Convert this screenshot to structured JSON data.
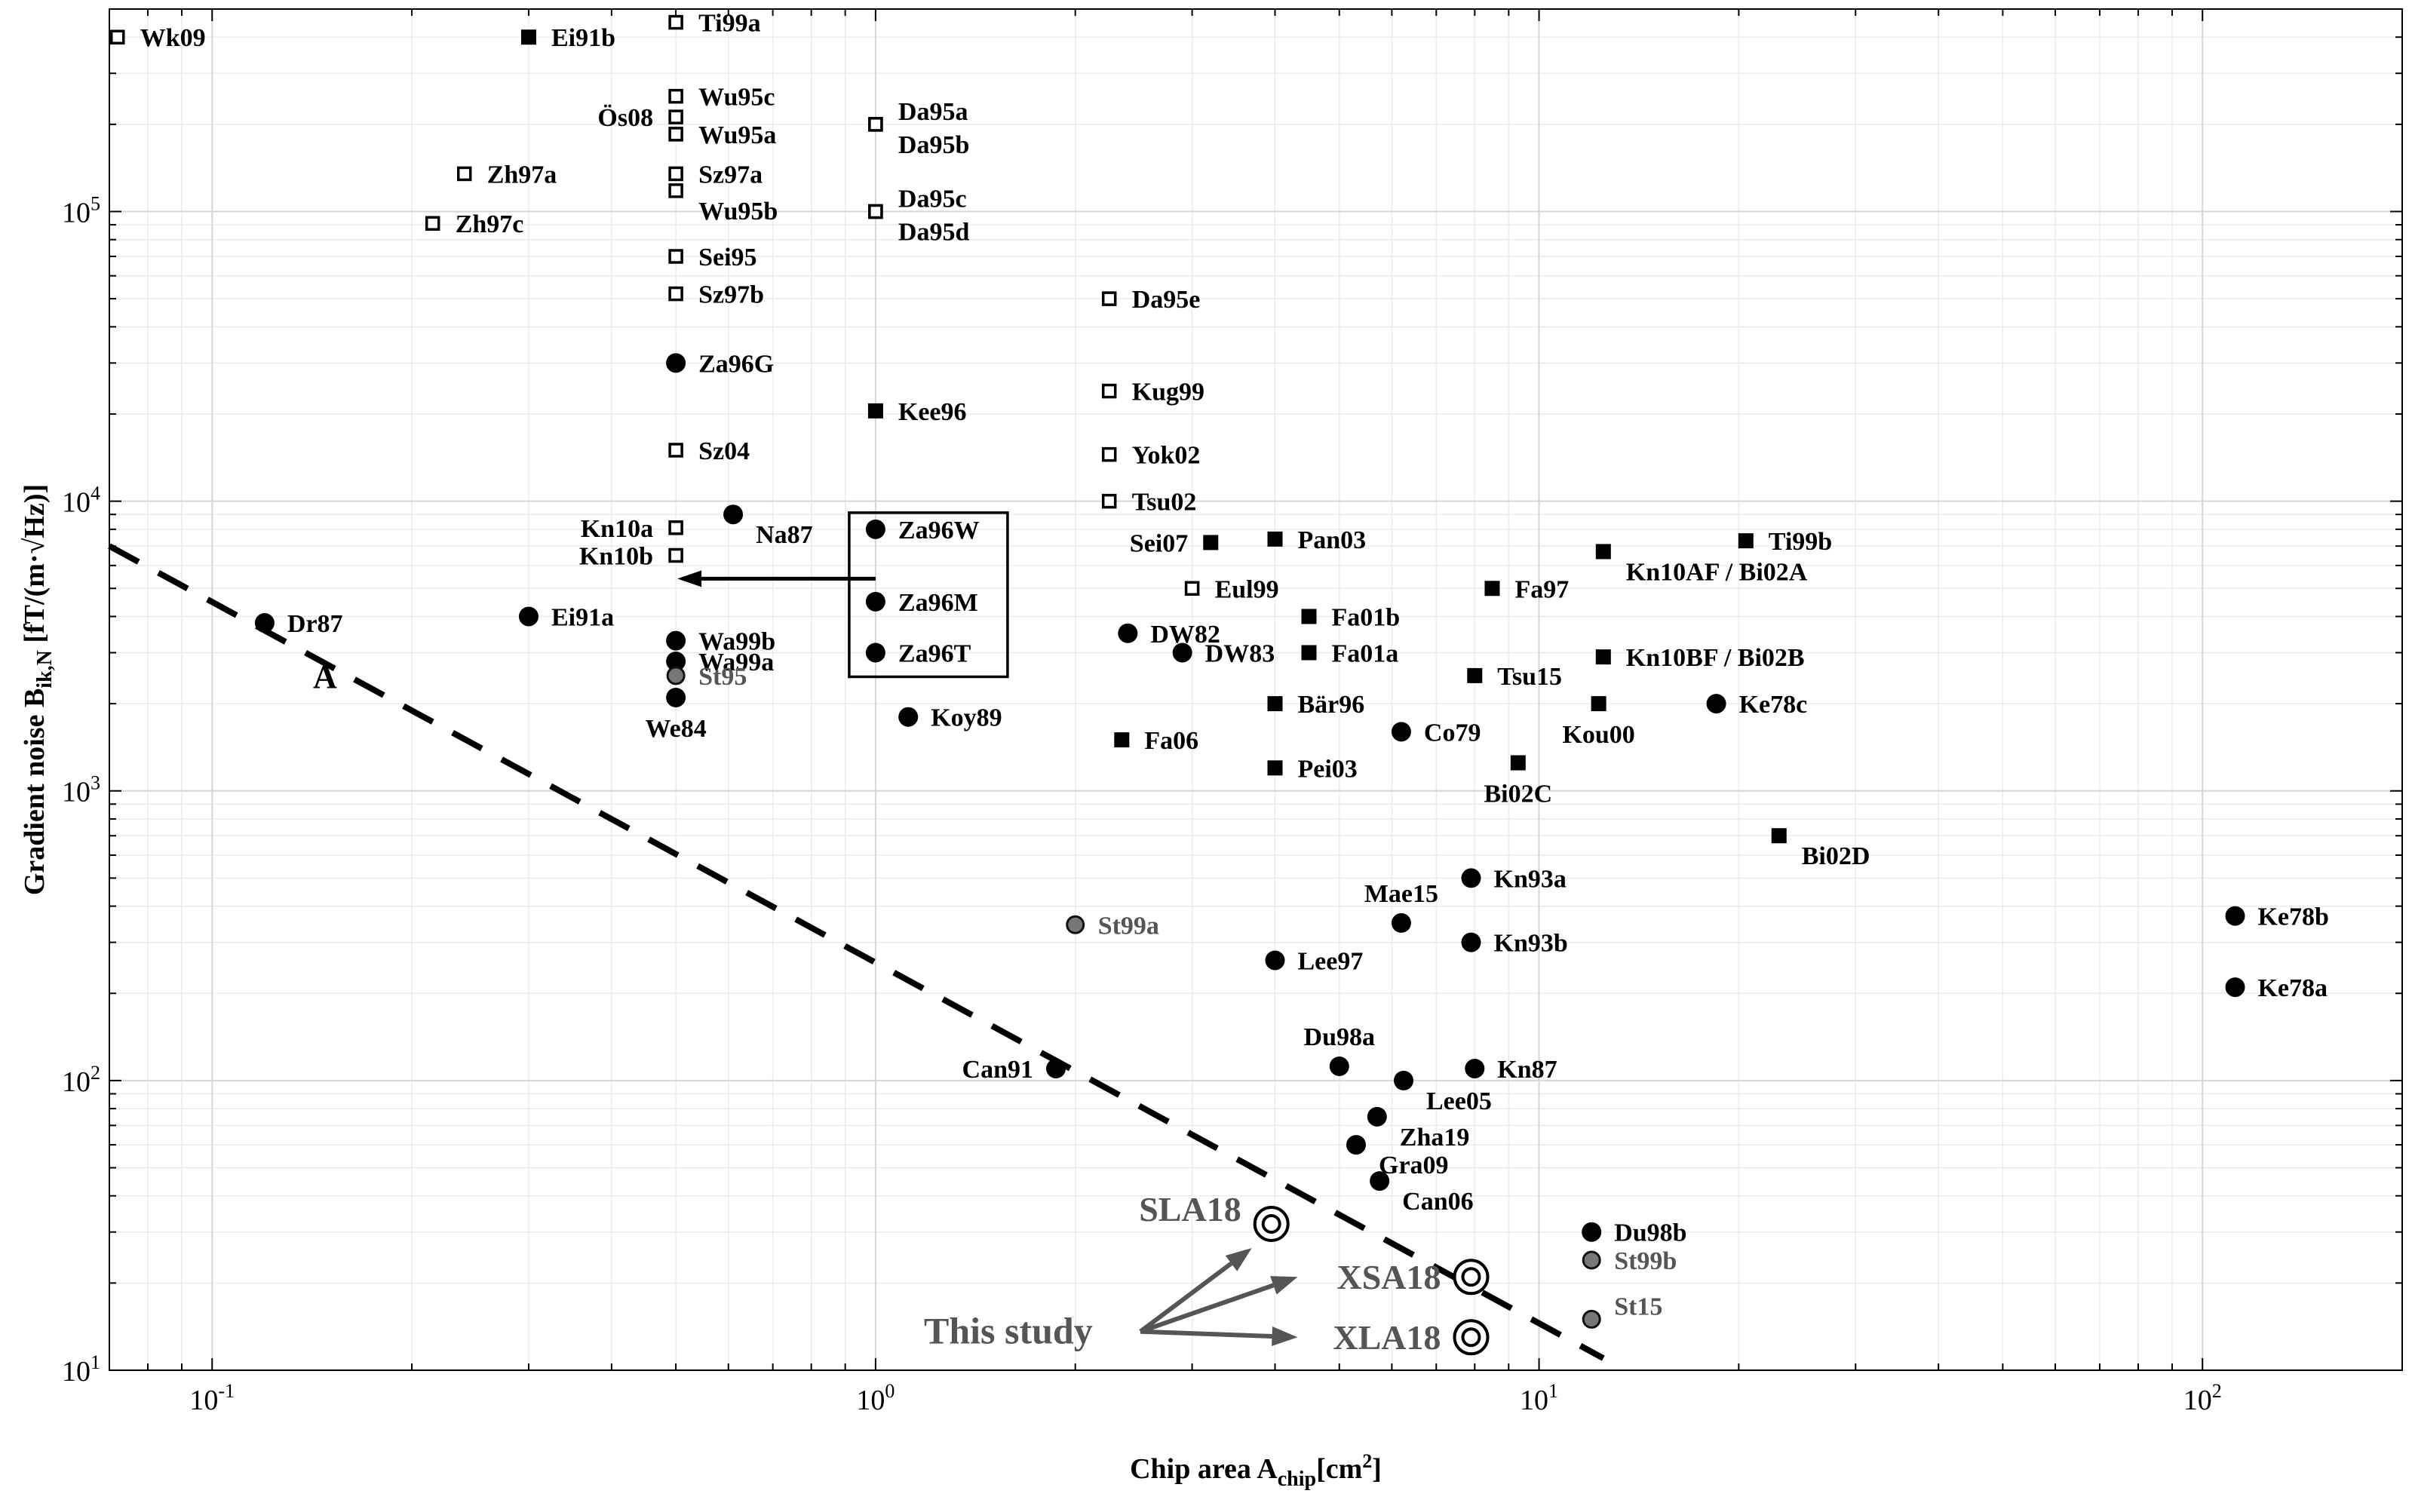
{
  "chart_data": {
    "type": "scatter",
    "title": "",
    "xlabel": {
      "main": "Chip area A",
      "sub": "chip",
      "unit_pre": "[cm",
      "unit_sup": "2",
      "unit_post": "]"
    },
    "ylabel": {
      "main": "Gradient noise B",
      "sub": "ik,N",
      "unit": " [fT/(m·√Hz)]"
    },
    "xscale": "log",
    "yscale": "log",
    "xlim": [
      0.07,
      200
    ],
    "ylim": [
      10,
      500000
    ],
    "x_ticks": [
      {
        "base": "10",
        "exp": "-1"
      },
      {
        "base": "10",
        "exp": "0"
      },
      {
        "base": "10",
        "exp": "1"
      },
      {
        "base": "10",
        "exp": "2"
      }
    ],
    "y_ticks": [
      {
        "base": "10",
        "exp": "1"
      },
      {
        "base": "10",
        "exp": "2"
      },
      {
        "base": "10",
        "exp": "3"
      },
      {
        "base": "10",
        "exp": "4"
      },
      {
        "base": "10",
        "exp": "5"
      }
    ],
    "grid": true,
    "colors": {
      "marker": "#000000",
      "gray_marker": "#777777",
      "gray_text": "#555555",
      "highlight": "#555555"
    },
    "marker_types": {
      "open_square": "open square",
      "filled_square": "filled square",
      "filled_circle": "filled circle",
      "gray_circle": "gray circle",
      "target": "concentric circles"
    },
    "points": [
      {
        "label": "Wk09",
        "x": 0.072,
        "y": 400000,
        "marker": "open_square",
        "label_pos": "right"
      },
      {
        "label": "Ei91b",
        "x": 0.3,
        "y": 400000,
        "marker": "filled_square",
        "label_pos": "right"
      },
      {
        "label": "Ti99a",
        "x": 0.5,
        "y": 450000,
        "marker": "open_square",
        "label_pos": "right"
      },
      {
        "label": "Wu95c",
        "x": 0.5,
        "y": 250000,
        "marker": "open_square",
        "label_pos": "right"
      },
      {
        "label": "Wu95a",
        "x": 0.5,
        "y": 185000,
        "marker": "open_square",
        "label_pos": "right"
      },
      {
        "label": "Ös08",
        "x": 0.5,
        "y": 212000,
        "marker": "open_square",
        "label_pos": "left"
      },
      {
        "label": "Da95a",
        "x": 1.0,
        "y": 200000,
        "marker": "open_square",
        "label_pos": "right-up"
      },
      {
        "label": "Da95b",
        "x": 1.0,
        "y": 200000,
        "marker": "open_square",
        "label_pos": "right-down"
      },
      {
        "label": "Zh97a",
        "x": 0.24,
        "y": 135000,
        "marker": "open_square",
        "label_pos": "right"
      },
      {
        "label": "Sz97a",
        "x": 0.5,
        "y": 135000,
        "marker": "open_square",
        "label_pos": "right"
      },
      {
        "label": "Wu95b",
        "x": 0.5,
        "y": 118000,
        "marker": "open_square",
        "label_pos": "right-down"
      },
      {
        "label": "Da95c",
        "x": 1.0,
        "y": 100000,
        "marker": "open_square",
        "label_pos": "right-up"
      },
      {
        "label": "Da95d",
        "x": 1.0,
        "y": 100000,
        "marker": "open_square",
        "label_pos": "right-down"
      },
      {
        "label": "Zh97c",
        "x": 0.215,
        "y": 91000,
        "marker": "open_square",
        "label_pos": "right"
      },
      {
        "label": "Sei95",
        "x": 0.5,
        "y": 70000,
        "marker": "open_square",
        "label_pos": "right"
      },
      {
        "label": "Sz97b",
        "x": 0.5,
        "y": 52000,
        "marker": "open_square",
        "label_pos": "right"
      },
      {
        "label": "Da95e",
        "x": 2.25,
        "y": 50000,
        "marker": "open_square",
        "label_pos": "right"
      },
      {
        "label": "Za96G",
        "x": 0.5,
        "y": 30000,
        "marker": "filled_circle",
        "label_pos": "right"
      },
      {
        "label": "Kug99",
        "x": 2.25,
        "y": 24000,
        "marker": "open_square",
        "label_pos": "right"
      },
      {
        "label": "Kee96",
        "x": 1.0,
        "y": 20500,
        "marker": "filled_square",
        "label_pos": "right"
      },
      {
        "label": "Sz04",
        "x": 0.5,
        "y": 15000,
        "marker": "open_square",
        "label_pos": "right"
      },
      {
        "label": "Yok02",
        "x": 2.25,
        "y": 14500,
        "marker": "open_square",
        "label_pos": "right"
      },
      {
        "label": "Tsu02",
        "x": 2.25,
        "y": 10000,
        "marker": "open_square",
        "label_pos": "right"
      },
      {
        "label": "Na87",
        "x": 0.61,
        "y": 9000,
        "marker": "filled_circle",
        "label_pos": "right-down"
      },
      {
        "label": "Kn10a",
        "x": 0.5,
        "y": 8100,
        "marker": "open_square",
        "label_pos": "left"
      },
      {
        "label": "Kn10b",
        "x": 0.5,
        "y": 6500,
        "marker": "open_square",
        "label_pos": "left"
      },
      {
        "label": "Za96W",
        "x": 1.0,
        "y": 8000,
        "marker": "filled_circle",
        "label_pos": "right"
      },
      {
        "label": "Za96M",
        "x": 1.0,
        "y": 4500,
        "marker": "filled_circle",
        "label_pos": "right"
      },
      {
        "label": "Za96T",
        "x": 1.0,
        "y": 3000,
        "marker": "filled_circle",
        "label_pos": "right"
      },
      {
        "label": "Sei07",
        "x": 3.2,
        "y": 7200,
        "marker": "filled_square",
        "label_pos": "left"
      },
      {
        "label": "Pan03",
        "x": 4.0,
        "y": 7400,
        "marker": "filled_square",
        "label_pos": "right"
      },
      {
        "label": "Eul99",
        "x": 3.0,
        "y": 5000,
        "marker": "open_square",
        "label_pos": "right"
      },
      {
        "label": "Fa01b",
        "x": 4.5,
        "y": 4000,
        "marker": "filled_square",
        "label_pos": "right"
      },
      {
        "label": "Fa01a",
        "x": 4.5,
        "y": 3000,
        "marker": "filled_square",
        "label_pos": "right"
      },
      {
        "label": "DW82",
        "x": 2.4,
        "y": 3500,
        "marker": "filled_circle",
        "label_pos": "right"
      },
      {
        "label": "DW83",
        "x": 2.9,
        "y": 3000,
        "marker": "filled_circle",
        "label_pos": "right"
      },
      {
        "label": "Dr87",
        "x": 0.12,
        "y": 3800,
        "marker": "filled_circle",
        "label_pos": "right"
      },
      {
        "label": "Ei91a",
        "x": 0.3,
        "y": 4000,
        "marker": "filled_circle",
        "label_pos": "right"
      },
      {
        "label": "Wa99b",
        "x": 0.5,
        "y": 3300,
        "marker": "filled_circle",
        "label_pos": "right"
      },
      {
        "label": "Wa99a",
        "x": 0.5,
        "y": 2800,
        "marker": "filled_circle",
        "label_pos": "right"
      },
      {
        "label": "St95",
        "x": 0.5,
        "y": 2500,
        "marker": "gray_circle",
        "label_pos": "right"
      },
      {
        "label": "We84",
        "x": 0.5,
        "y": 2100,
        "marker": "filled_circle",
        "label_pos": "below"
      },
      {
        "label": "Koy89",
        "x": 1.12,
        "y": 1800,
        "marker": "filled_circle",
        "label_pos": "right"
      },
      {
        "label": "Bär96",
        "x": 4.0,
        "y": 2000,
        "marker": "filled_square",
        "label_pos": "right"
      },
      {
        "label": "Fa06",
        "x": 2.35,
        "y": 1500,
        "marker": "filled_square",
        "label_pos": "right"
      },
      {
        "label": "Co79",
        "x": 6.2,
        "y": 1600,
        "marker": "filled_circle",
        "label_pos": "right"
      },
      {
        "label": "Pei03",
        "x": 4.0,
        "y": 1200,
        "marker": "filled_square",
        "label_pos": "right"
      },
      {
        "label": "Fa97",
        "x": 8.5,
        "y": 5000,
        "marker": "filled_square",
        "label_pos": "right"
      },
      {
        "label": "Kn10AF / Bi02A",
        "x": 12.5,
        "y": 6700,
        "marker": "filled_square",
        "label_pos": "right-down"
      },
      {
        "label": "Ti99b",
        "x": 20.5,
        "y": 7300,
        "marker": "filled_square",
        "label_pos": "right"
      },
      {
        "label": "Tsu15",
        "x": 8.0,
        "y": 2500,
        "marker": "filled_square",
        "label_pos": "right"
      },
      {
        "label": "Kn10BF / Bi02B",
        "x": 12.5,
        "y": 2900,
        "marker": "filled_square",
        "label_pos": "right"
      },
      {
        "label": "Kou00",
        "x": 12.3,
        "y": 2000,
        "marker": "filled_square",
        "label_pos": "below"
      },
      {
        "label": "Ke78c",
        "x": 18.5,
        "y": 2000,
        "marker": "filled_circle",
        "label_pos": "right"
      },
      {
        "label": "Bi02C",
        "x": 9.3,
        "y": 1250,
        "marker": "filled_square",
        "label_pos": "below"
      },
      {
        "label": "Bi02D",
        "x": 23.0,
        "y": 700,
        "marker": "filled_square",
        "label_pos": "right-down"
      },
      {
        "label": "Kn93a",
        "x": 7.9,
        "y": 500,
        "marker": "filled_circle",
        "label_pos": "right"
      },
      {
        "label": "Mae15",
        "x": 6.2,
        "y": 350,
        "marker": "filled_circle",
        "label_pos": "above"
      },
      {
        "label": "Kn93b",
        "x": 7.9,
        "y": 300,
        "marker": "filled_circle",
        "label_pos": "right"
      },
      {
        "label": "St99a",
        "x": 2.0,
        "y": 345,
        "marker": "gray_circle",
        "label_pos": "right"
      },
      {
        "label": "Lee97",
        "x": 4.0,
        "y": 260,
        "marker": "filled_circle",
        "label_pos": "right"
      },
      {
        "label": "Ke78b",
        "x": 112.0,
        "y": 370,
        "marker": "filled_circle",
        "label_pos": "right"
      },
      {
        "label": "Ke78a",
        "x": 112.0,
        "y": 210,
        "marker": "filled_circle",
        "label_pos": "right"
      },
      {
        "label": "Can91",
        "x": 1.87,
        "y": 110,
        "marker": "filled_circle",
        "label_pos": "left"
      },
      {
        "label": "Du98a",
        "x": 5.0,
        "y": 112,
        "marker": "filled_circle",
        "label_pos": "above"
      },
      {
        "label": "Kn87",
        "x": 8.0,
        "y": 110,
        "marker": "filled_circle",
        "label_pos": "right"
      },
      {
        "label": "Lee05",
        "x": 6.25,
        "y": 100,
        "marker": "filled_circle",
        "label_pos": "right-down"
      },
      {
        "label": "Zha19",
        "x": 5.7,
        "y": 75,
        "marker": "filled_circle",
        "label_pos": "right-down"
      },
      {
        "label": "Gra09",
        "x": 5.3,
        "y": 60,
        "marker": "filled_circle",
        "label_pos": "right-down"
      },
      {
        "label": "Can06",
        "x": 5.75,
        "y": 45,
        "marker": "filled_circle",
        "label_pos": "right-down"
      },
      {
        "label": "Du98b",
        "x": 12.0,
        "y": 30,
        "marker": "filled_circle",
        "label_pos": "right"
      },
      {
        "label": "St99b",
        "x": 12.0,
        "y": 24,
        "marker": "gray_circle",
        "label_pos": "right"
      },
      {
        "label": "St15",
        "x": 12.0,
        "y": 15,
        "marker": "gray_circle",
        "label_pos": "right-up"
      }
    ],
    "this_study": {
      "label": "This study",
      "points": [
        {
          "label": "SLA18",
          "x": 3.95,
          "y": 32
        },
        {
          "label": "XSA18",
          "x": 7.9,
          "y": 21
        },
        {
          "label": "XLA18",
          "x": 7.9,
          "y": 13
        }
      ]
    },
    "trend_line": {
      "label": "A",
      "style": "dashed",
      "x": [
        0.07,
        12.5
      ],
      "y": [
        7000,
        11
      ]
    },
    "annotations": [
      {
        "type": "box",
        "encloses": [
          "Za96W",
          "Za96M",
          "Za96T"
        ]
      },
      {
        "type": "arrow",
        "from": "Za96 box",
        "to": "Kn10b"
      }
    ]
  }
}
